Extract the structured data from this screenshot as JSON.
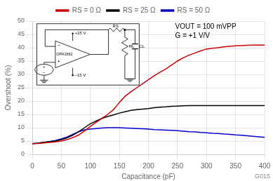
{
  "chart_data": {
    "type": "line",
    "xlabel": "Capacitance (pF)",
    "ylabel": "Overshoot (%)",
    "xlim": [
      0,
      400
    ],
    "ylim": [
      0,
      50
    ],
    "xticks": [
      0,
      50,
      100,
      150,
      200,
      250,
      300,
      350,
      400
    ],
    "yticks": [
      0,
      5,
      10,
      15,
      20,
      25,
      30,
      35,
      40,
      45,
      50
    ],
    "grid": true,
    "legend": "top",
    "x": [
      0,
      10,
      20,
      30,
      40,
      50,
      60,
      70,
      80,
      90,
      100,
      110,
      120,
      130,
      140,
      150,
      160,
      170,
      180,
      190,
      200,
      210,
      220,
      230,
      240,
      250,
      260,
      270,
      280,
      290,
      300,
      310,
      320,
      330,
      340,
      350,
      360,
      370,
      380,
      390,
      400
    ],
    "series": [
      {
        "name": "RS = 0 Ω",
        "color": "#cc0000",
        "values": [
          4.0,
          4.1,
          4.3,
          4.5,
          4.7,
          5.0,
          5.5,
          6.3,
          7.3,
          8.8,
          10.5,
          12.0,
          13.5,
          15.0,
          16.8,
          19.5,
          21.8,
          23.5,
          25.0,
          26.5,
          28.0,
          29.5,
          30.8,
          32.0,
          33.5,
          35.0,
          36.2,
          37.2,
          38.0,
          38.8,
          39.5,
          39.8,
          40.0,
          40.3,
          40.5,
          40.7,
          40.8,
          40.9,
          41.0,
          41.0,
          41.0
        ]
      },
      {
        "name": "RS = 25 Ω",
        "color": "#000000",
        "values": [
          4.0,
          4.2,
          4.5,
          4.8,
          5.0,
          5.5,
          6.2,
          7.2,
          8.5,
          10.0,
          11.5,
          12.5,
          13.5,
          14.2,
          14.8,
          15.5,
          16.0,
          16.5,
          16.8,
          17.0,
          17.2,
          17.5,
          17.7,
          17.8,
          18.0,
          18.1,
          18.2,
          18.3,
          18.3,
          18.3,
          18.3,
          18.3,
          18.3,
          18.3,
          18.3,
          18.3,
          18.3,
          18.3,
          18.3,
          18.3,
          18.3
        ]
      },
      {
        "name": "RS = 50 Ω",
        "color": "#0000cc",
        "values": [
          4.0,
          4.2,
          4.5,
          4.8,
          5.2,
          5.8,
          6.5,
          7.5,
          8.5,
          9.2,
          9.5,
          9.7,
          9.9,
          10.0,
          10.0,
          10.0,
          9.9,
          9.8,
          9.7,
          9.6,
          9.5,
          9.3,
          9.2,
          9.1,
          9.0,
          8.9,
          8.7,
          8.5,
          8.4,
          8.2,
          8.1,
          7.9,
          7.8,
          7.6,
          7.5,
          7.3,
          7.2,
          7.0,
          6.8,
          6.6,
          6.4
        ]
      }
    ],
    "annotations": [
      "VOUT = 100 mVPP",
      "G = +1 V/V",
      "G015",
      "OPA1662",
      "−",
      "+",
      "+15 V",
      "−15 V",
      "+",
      "−",
      "RS",
      "RL",
      "CL"
    ]
  }
}
